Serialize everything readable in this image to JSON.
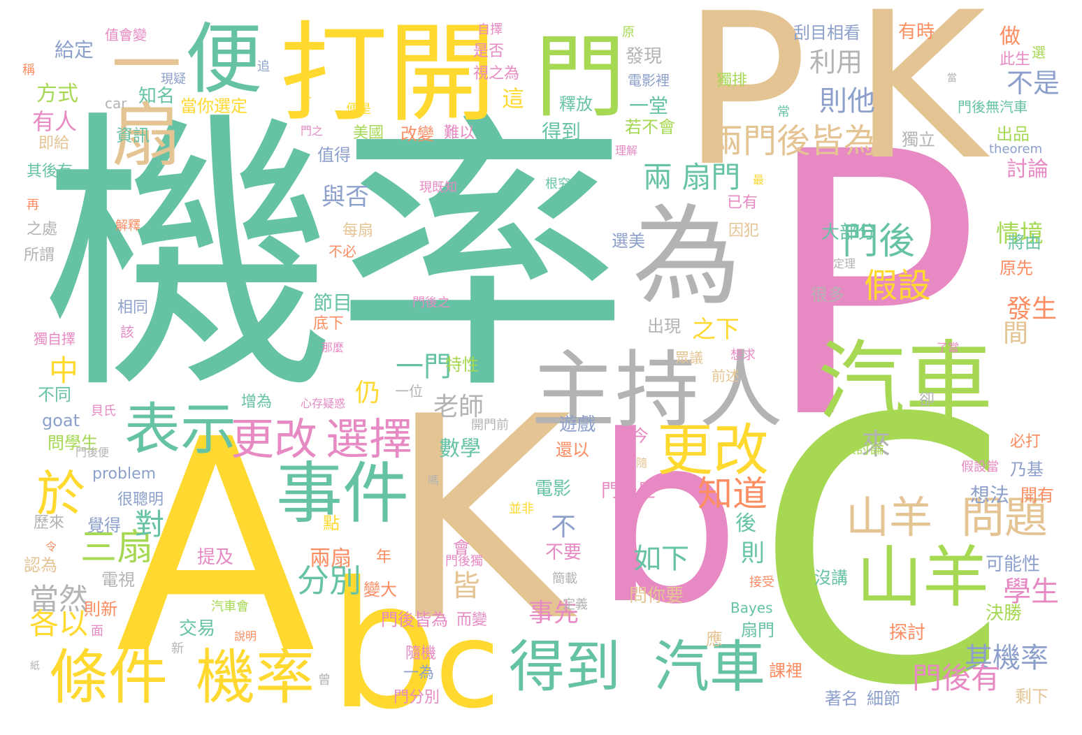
{
  "palette": {
    "teal": "#66c2a5",
    "orange": "#fc8d62",
    "blue": "#8da0cb",
    "pink": "#e78ac3",
    "green": "#a6d854",
    "yellow": "#ffd92f",
    "tan": "#e5c494",
    "gray": "#b3b3b3"
  },
  "words": [
    {
      "text": "機率",
      "color": "teal"
    },
    {
      "text": "P",
      "color": "pink"
    },
    {
      "text": "P",
      "color": "tan"
    },
    {
      "text": "K",
      "color": "tan"
    },
    {
      "text": "C",
      "color": "green"
    },
    {
      "text": "A",
      "color": "yellow"
    },
    {
      "text": "K",
      "color": "tan"
    },
    {
      "text": "b",
      "color": "pink"
    },
    {
      "text": "b",
      "color": "yellow"
    },
    {
      "text": "c",
      "color": "yellow"
    },
    {
      "text": "打開",
      "color": "yellow"
    },
    {
      "text": "為",
      "color": "gray"
    },
    {
      "text": "門",
      "color": "green"
    },
    {
      "text": "便",
      "color": "teal"
    },
    {
      "text": "一扇",
      "color": "tan"
    },
    {
      "text": "主持人",
      "color": "gray"
    },
    {
      "text": "汽車",
      "color": "green"
    },
    {
      "text": "事件",
      "color": "teal"
    },
    {
      "text": "表示",
      "color": "teal"
    },
    {
      "text": "更改",
      "color": "yellow"
    },
    {
      "text": "更改",
      "color": "pink"
    },
    {
      "text": "選擇",
      "color": "pink"
    },
    {
      "text": "條件",
      "color": "yellow"
    },
    {
      "text": "機率",
      "color": "yellow"
    },
    {
      "text": "得到",
      "color": "teal"
    },
    {
      "text": "汽車",
      "color": "teal"
    },
    {
      "text": "山羊",
      "color": "tan"
    },
    {
      "text": "問題",
      "color": "tan"
    },
    {
      "text": "山羊",
      "color": "green"
    },
    {
      "text": "兩門後皆為",
      "color": "tan"
    },
    {
      "text": "兩 扇門",
      "color": "teal"
    },
    {
      "text": "門後",
      "color": "teal"
    },
    {
      "text": "假設",
      "color": "yellow"
    },
    {
      "text": "知道",
      "color": "orange"
    },
    {
      "text": "三扇",
      "color": "green"
    },
    {
      "text": "分別",
      "color": "teal"
    },
    {
      "text": "如下",
      "color": "teal"
    },
    {
      "text": "當然",
      "color": "gray"
    },
    {
      "text": "各以",
      "color": "yellow"
    },
    {
      "text": "於",
      "color": "yellow"
    },
    {
      "text": "老師",
      "color": "gray"
    },
    {
      "text": "一門",
      "color": "teal"
    },
    {
      "text": "學生",
      "color": "pink"
    },
    {
      "text": "其機率",
      "color": "blue"
    },
    {
      "text": "門後有",
      "color": "pink"
    },
    {
      "text": "利用",
      "color": "gray"
    },
    {
      "text": "則他",
      "color": "blue"
    },
    {
      "text": "不是",
      "color": "blue"
    },
    {
      "text": "給定",
      "color": "blue"
    },
    {
      "text": "方式",
      "color": "green"
    },
    {
      "text": "有人",
      "color": "pink"
    },
    {
      "text": "與否",
      "color": "blue"
    },
    {
      "text": "情境",
      "color": "green"
    },
    {
      "text": "發生",
      "color": "orange"
    },
    {
      "text": "討論",
      "color": "pink"
    },
    {
      "text": "刮目相看",
      "color": "blue"
    },
    {
      "text": "有時",
      "color": "orange"
    },
    {
      "text": "做",
      "color": "orange"
    },
    {
      "text": "理解",
      "color": "pink"
    },
    {
      "text": "得到",
      "color": "teal"
    },
    {
      "text": "一堂",
      "color": "teal"
    },
    {
      "text": "釋放",
      "color": "teal"
    },
    {
      "text": "發現",
      "color": "gray"
    },
    {
      "text": "電影裡",
      "color": "blue"
    },
    {
      "text": "若不會",
      "color": "green"
    },
    {
      "text": "獨排",
      "color": "green"
    },
    {
      "text": "當你選定",
      "color": "yellow"
    },
    {
      "text": "知名",
      "color": "teal"
    },
    {
      "text": "美國",
      "color": "green"
    },
    {
      "text": "改變",
      "color": "orange"
    },
    {
      "text": "資訊",
      "color": "teal"
    },
    {
      "text": "car",
      "color": "gray"
    },
    {
      "text": "theorem",
      "color": "blue"
    },
    {
      "text": "goat",
      "color": "blue"
    },
    {
      "text": "problem",
      "color": "blue"
    },
    {
      "text": "Bayes",
      "color": "teal"
    },
    {
      "text": "門後無汽車",
      "color": "teal"
    },
    {
      "text": "節目",
      "color": "teal"
    },
    {
      "text": "之下",
      "color": "yellow"
    },
    {
      "text": "出現",
      "color": "gray"
    },
    {
      "text": "門後是",
      "color": "pink"
    },
    {
      "text": "電影",
      "color": "teal"
    },
    {
      "text": "兩扇",
      "color": "orange"
    },
    {
      "text": "數學",
      "color": "teal"
    },
    {
      "text": "介",
      "color": "green"
    },
    {
      "text": "來",
      "color": "gray"
    },
    {
      "text": "仍",
      "color": "yellow"
    },
    {
      "text": "中",
      "color": "yellow"
    },
    {
      "text": "對",
      "color": "teal"
    },
    {
      "text": "皆",
      "color": "tan"
    },
    {
      "text": "不",
      "color": "blue"
    },
    {
      "text": "後",
      "color": "teal"
    },
    {
      "text": "則",
      "color": "teal"
    },
    {
      "text": "事先",
      "color": "pink"
    },
    {
      "text": "門後皆為",
      "color": "pink"
    },
    {
      "text": "而變",
      "color": "pink"
    },
    {
      "text": "變大",
      "color": "orange"
    },
    {
      "text": "問你要",
      "color": "tan"
    },
    {
      "text": "想法",
      "color": "blue"
    },
    {
      "text": "開有",
      "color": "orange"
    },
    {
      "text": "可能性",
      "color": "blue"
    },
    {
      "text": "決勝",
      "color": "green"
    },
    {
      "text": "探討",
      "color": "orange"
    },
    {
      "text": "扇門",
      "color": "teal"
    },
    {
      "text": "著名",
      "color": "blue"
    },
    {
      "text": "細節",
      "color": "blue"
    },
    {
      "text": "剩下",
      "color": "tan"
    },
    {
      "text": "課裡",
      "color": "orange"
    },
    {
      "text": "沒講",
      "color": "teal"
    },
    {
      "text": "乃基",
      "color": "blue"
    },
    {
      "text": "間",
      "color": "tan"
    },
    {
      "text": "出品",
      "color": "green"
    },
    {
      "text": "原先",
      "color": "orange"
    },
    {
      "text": "將由",
      "color": "teal"
    },
    {
      "text": "此生",
      "color": "pink"
    },
    {
      "text": "選",
      "color": "green"
    },
    {
      "text": "獨立",
      "color": "gray"
    },
    {
      "text": "值會變",
      "color": "pink"
    },
    {
      "text": "稱",
      "color": "orange"
    },
    {
      "text": "追",
      "color": "blue"
    },
    {
      "text": "即給",
      "color": "tan"
    },
    {
      "text": "其後有",
      "color": "teal"
    },
    {
      "text": "再",
      "color": "orange"
    },
    {
      "text": "之處",
      "color": "gray"
    },
    {
      "text": "所謂",
      "color": "gray"
    },
    {
      "text": "相同",
      "color": "blue"
    },
    {
      "text": "該",
      "color": "pink"
    },
    {
      "text": "獨自擇",
      "color": "pink"
    },
    {
      "text": "不同",
      "color": "teal"
    },
    {
      "text": "貝氏",
      "color": "pink"
    },
    {
      "text": "問學生",
      "color": "green"
    },
    {
      "text": "很聰明",
      "color": "blue"
    },
    {
      "text": "歷來",
      "color": "gray"
    },
    {
      "text": "覺得",
      "color": "blue"
    },
    {
      "text": "認為",
      "color": "tan"
    },
    {
      "text": "電視",
      "color": "gray"
    },
    {
      "text": "則新",
      "color": "orange"
    },
    {
      "text": "提及",
      "color": "pink"
    },
    {
      "text": "交易",
      "color": "teal"
    },
    {
      "text": "隨機",
      "color": "pink"
    },
    {
      "text": "一為",
      "color": "blue"
    },
    {
      "text": "門分別",
      "color": "pink"
    },
    {
      "text": "年",
      "color": "orange"
    },
    {
      "text": "點",
      "color": "yellow"
    },
    {
      "text": "會",
      "color": "pink"
    },
    {
      "text": "不要",
      "color": "pink"
    },
    {
      "text": "應",
      "color": "tan"
    },
    {
      "text": "每扇",
      "color": "tan"
    },
    {
      "text": "值得",
      "color": "blue"
    },
    {
      "text": "不必",
      "color": "orange"
    },
    {
      "text": "底下",
      "color": "orange"
    },
    {
      "text": "特性",
      "color": "green"
    },
    {
      "text": "那麼",
      "color": "pink"
    },
    {
      "text": "遊戲",
      "color": "blue"
    },
    {
      "text": "還以",
      "color": "orange"
    },
    {
      "text": "如今",
      "color": "pink"
    },
    {
      "text": "選美",
      "color": "blue"
    },
    {
      "text": "因犯",
      "color": "tan"
    },
    {
      "text": "已有",
      "color": "pink"
    },
    {
      "text": "大部分",
      "color": "teal"
    },
    {
      "text": "很多",
      "color": "gray"
    },
    {
      "text": "根究",
      "color": "teal"
    },
    {
      "text": "眾議",
      "color": "tan"
    },
    {
      "text": "前述",
      "color": "tan"
    },
    {
      "text": "想求",
      "color": "pink"
    },
    {
      "text": "自擇",
      "color": "pink"
    },
    {
      "text": "是否",
      "color": "pink"
    },
    {
      "text": "視之為",
      "color": "pink"
    },
    {
      "text": "原",
      "color": "green"
    },
    {
      "text": "現疑",
      "color": "blue"
    },
    {
      "text": "人",
      "color": "yellow"
    },
    {
      "text": "便是",
      "color": "yellow"
    },
    {
      "text": "門之",
      "color": "pink"
    },
    {
      "text": "難以",
      "color": "pink"
    },
    {
      "text": "現既知",
      "color": "pink"
    },
    {
      "text": "解釋",
      "color": "orange"
    },
    {
      "text": "門後之",
      "color": "pink"
    },
    {
      "text": "心存疑惑",
      "color": "pink"
    },
    {
      "text": "增為",
      "color": "teal"
    },
    {
      "text": "一位",
      "color": "gray"
    },
    {
      "text": "開門前",
      "color": "gray"
    },
    {
      "text": "門後便",
      "color": "gray"
    },
    {
      "text": "嗎",
      "color": "gray"
    },
    {
      "text": "並非",
      "color": "yellow"
    },
    {
      "text": "門後獨",
      "color": "pink"
    },
    {
      "text": "簡載",
      "color": "gray"
    },
    {
      "text": "定義",
      "color": "gray"
    },
    {
      "text": "汽車會",
      "color": "green"
    },
    {
      "text": "說明",
      "color": "orange"
    },
    {
      "text": "面",
      "color": "pink"
    },
    {
      "text": "新",
      "color": "gray"
    },
    {
      "text": "紙",
      "color": "gray"
    },
    {
      "text": "曾",
      "color": "gray"
    },
    {
      "text": "令",
      "color": "orange"
    },
    {
      "text": "接受",
      "color": "orange"
    },
    {
      "text": "隨",
      "color": "tan"
    },
    {
      "text": "人討論",
      "color": "green"
    },
    {
      "text": "必打",
      "color": "orange"
    },
    {
      "text": "假設當",
      "color": "pink"
    },
    {
      "text": "卻",
      "color": "gray"
    },
    {
      "text": "了當",
      "color": "pink"
    },
    {
      "text": "最",
      "color": "yellow"
    },
    {
      "text": "定理",
      "color": "gray"
    },
    {
      "text": "常",
      "color": "teal"
    },
    {
      "text": "這",
      "color": "yellow"
    },
    {
      "text": "當",
      "color": "gray"
    }
  ]
}
